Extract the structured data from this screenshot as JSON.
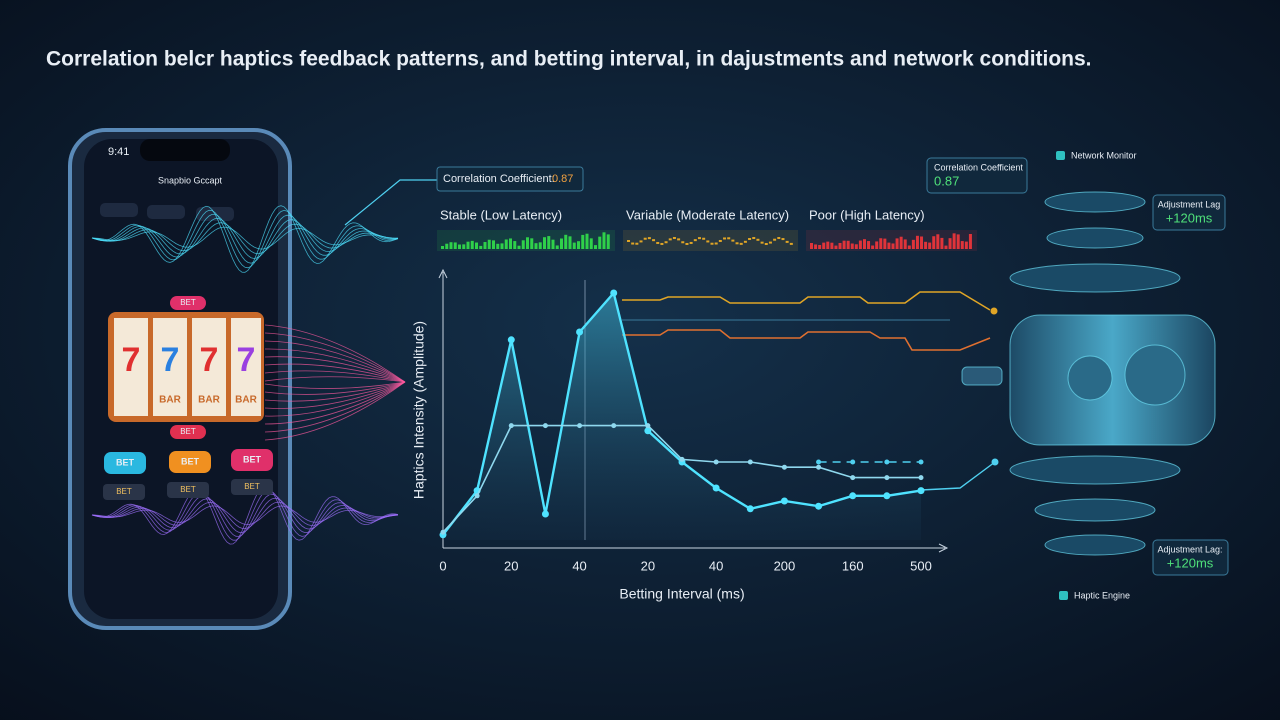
{
  "title": "Correlation belcr haptics feedback patterns, and betting interval, in dajustments and network conditions.",
  "phone": {
    "time": "9:41",
    "app_title": "Snapbio Gccapt",
    "reels": [
      "7",
      "7",
      "7",
      "7"
    ],
    "reel_bars": [
      "BAR",
      "BAR",
      "BAR"
    ],
    "bet_badges": [
      "BET",
      "BET"
    ],
    "bet_buttons": [
      "BET",
      "BET",
      "BET"
    ],
    "small_buttons": [
      "BET",
      "BET",
      "BET"
    ]
  },
  "correlation_left": {
    "label": "Correlation Coefficient:",
    "value": "0.87"
  },
  "network_panel": {
    "title": "Network Monitor",
    "corr_label": "Correlation Coefficient",
    "corr_value": "0.87",
    "lag_top_label": "Adjustment Lag",
    "lag_top_value": "+120ms",
    "lag_bottom_label": "Adjustment Lag:",
    "lag_bottom_value": "+120ms",
    "engine": "Haptic Engine"
  },
  "latency": [
    {
      "name": "Stable (Low Latency)",
      "color": "#2fd04a"
    },
    {
      "name": "Variable (Moderate Latency)",
      "color": "#e0a526"
    },
    {
      "name": "Poor (High Latency)",
      "color": "#e0343a"
    }
  ],
  "chart_data": {
    "type": "line",
    "y_label": "Haptics Intensity (Amplitude)",
    "x_label": "Betting Interval (ms)",
    "categories": [
      "0",
      null,
      "20",
      null,
      "40",
      null,
      "20",
      null,
      "40",
      null,
      "200",
      null,
      "160",
      null,
      "500"
    ],
    "ylim": [
      0,
      1
    ],
    "series": [
      {
        "color": "#4fe3ff",
        "values": [
          0.02,
          0.19,
          0.77,
          0.1,
          0.8,
          0.95,
          0.42,
          0.3,
          0.2,
          0.12,
          0.15,
          0.13,
          0.17,
          0.17,
          0.19
        ]
      },
      {
        "color": "#8fd8ee",
        "values": [
          0.03,
          0.17,
          0.44,
          0.44,
          0.44,
          0.44,
          0.44,
          0.31,
          0.3,
          0.3,
          0.28,
          0.28,
          0.24,
          0.24,
          0.24
        ]
      },
      {
        "color": "#4fd0f0",
        "values": [
          null,
          null,
          null,
          null,
          null,
          null,
          null,
          null,
          null,
          null,
          null,
          0.3,
          0.3,
          0.3,
          0.3
        ]
      }
    ]
  }
}
